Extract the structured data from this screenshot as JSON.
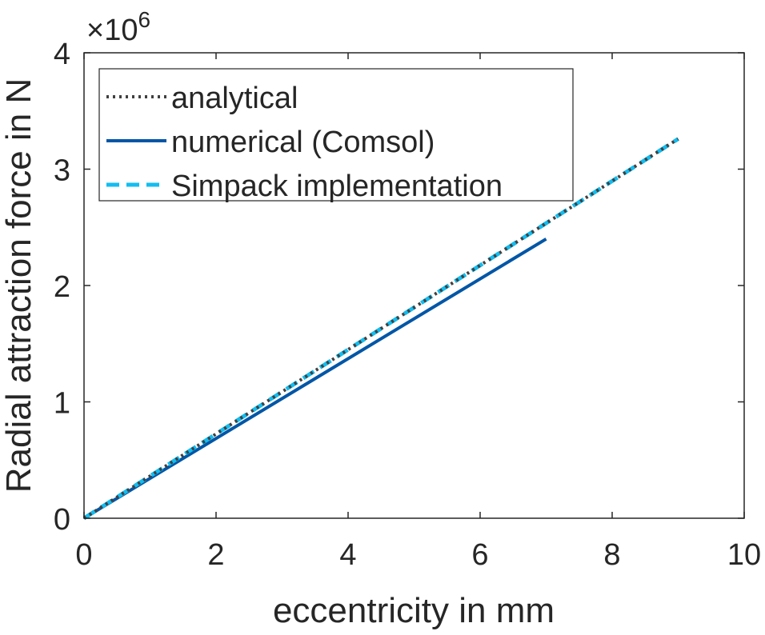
{
  "chart_data": {
    "type": "line",
    "title": "",
    "xlabel": "eccentricity in mm",
    "ylabel": "Radial attraction force in N",
    "y_exponent_label": "×10",
    "y_exponent": "6",
    "xlim": [
      0,
      10
    ],
    "ylim": [
      0,
      4
    ],
    "xticks": [
      "0",
      "2",
      "4",
      "6",
      "8",
      "10"
    ],
    "yticks": [
      "0",
      "1",
      "2",
      "3",
      "4"
    ],
    "grid": false,
    "legend_position": "top-left",
    "series": [
      {
        "name": "analytical",
        "style": "dotted",
        "color": "#404040",
        "x": [
          0,
          9
        ],
        "y": [
          0,
          3.26
        ]
      },
      {
        "name": "numerical (Comsol)",
        "style": "solid",
        "color": "#0056a6",
        "x": [
          0,
          7
        ],
        "y": [
          0,
          2.4
        ]
      },
      {
        "name": "Simpack implementation",
        "style": "dashed",
        "color": "#12bdf0",
        "x": [
          0,
          9
        ],
        "y": [
          0,
          3.26
        ]
      }
    ]
  }
}
